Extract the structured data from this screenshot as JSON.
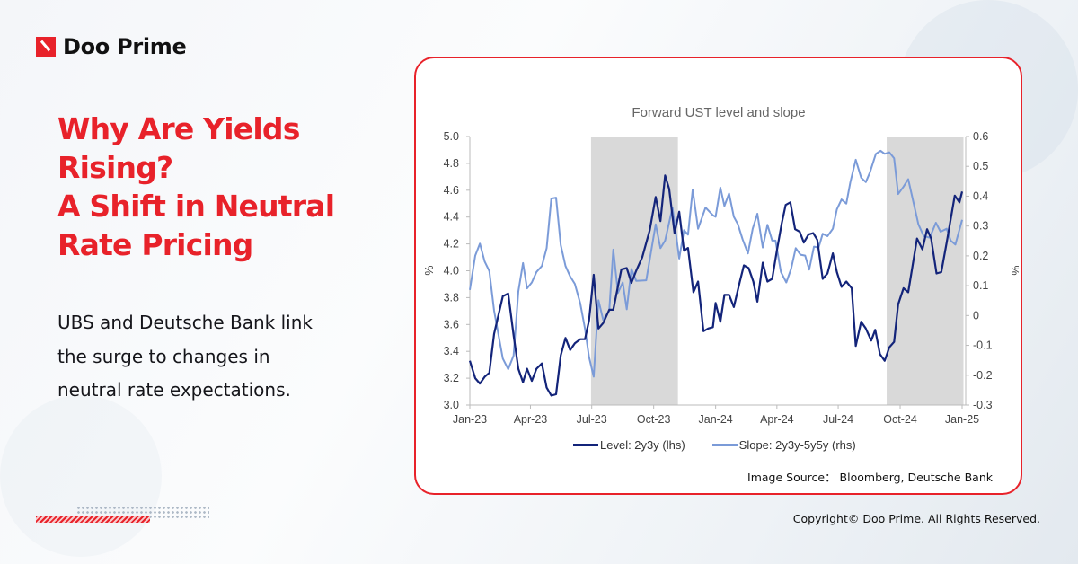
{
  "brand": {
    "name": "Doo Prime",
    "accent": "#e8222a"
  },
  "headline": [
    "Why Are Yields",
    "Rising?",
    "A Shift in Neutral",
    "Rate Pricing"
  ],
  "body": [
    "UBS and Deutsche Bank link",
    "the surge to changes in",
    "neutral rate expectations."
  ],
  "source": "Image Source： Bloomberg, Deutsche Bank",
  "copyright": "Copyright© Doo Prime. All Rights Reserved.",
  "chart_data": {
    "type": "line",
    "title": "Forward UST level and slope",
    "ylabel_left": "%",
    "ylabel_right": "%",
    "ylim_left": [
      3.0,
      5.0
    ],
    "ylim_right": [
      -0.3,
      0.6
    ],
    "yticks_left": [
      "5.0",
      "4.8",
      "4.6",
      "4.4",
      "4.2",
      "4.0",
      "3.8",
      "3.6",
      "3.4",
      "3.2",
      "3.0"
    ],
    "yticks_right": [
      "0.6",
      "0.5",
      "0.4",
      "0.3",
      "0.2",
      "0.1",
      "0",
      "-0.1",
      "-0.2",
      "-0.3"
    ],
    "xlim": [
      "2023-01-01",
      "2025-01-01"
    ],
    "xticks": [
      {
        "date": "2023-01-01",
        "label": "Jan-23"
      },
      {
        "date": "2023-04-01",
        "label": "Apr-23"
      },
      {
        "date": "2023-07-01",
        "label": "Jul-23"
      },
      {
        "date": "2023-10-01",
        "label": "Oct-23"
      },
      {
        "date": "2024-01-01",
        "label": "Jan-24"
      },
      {
        "date": "2024-04-01",
        "label": "Apr-24"
      },
      {
        "date": "2024-07-01",
        "label": "Jul-24"
      },
      {
        "date": "2024-10-01",
        "label": "Oct-24"
      },
      {
        "date": "2025-01-01",
        "label": "Jan-25"
      }
    ],
    "grid": false,
    "legend_position": "bottom",
    "shaded_periods": [
      [
        "2023-06-30",
        "2023-11-06"
      ],
      [
        "2024-09-11",
        "2025-01-03"
      ]
    ],
    "shade_color": "#d9d9d9",
    "series": [
      {
        "name": "Level: 2y3y (lhs)",
        "axis": "left",
        "color": "#13247a",
        "x": [
          "2023-01-01",
          "2023-01-09",
          "2023-01-16",
          "2023-01-23",
          "2023-01-30",
          "2023-02-06",
          "2023-02-19",
          "2023-02-27",
          "2023-03-07",
          "2023-03-14",
          "2023-03-21",
          "2023-03-27",
          "2023-04-03",
          "2023-04-10",
          "2023-04-18",
          "2023-04-25",
          "2023-05-02",
          "2023-05-09",
          "2023-05-16",
          "2023-05-23",
          "2023-05-30",
          "2023-06-06",
          "2023-06-14",
          "2023-06-21",
          "2023-06-27",
          "2023-07-04",
          "2023-07-11",
          "2023-07-18",
          "2023-07-27",
          "2023-08-02",
          "2023-08-14",
          "2023-08-22",
          "2023-08-29",
          "2023-09-05",
          "2023-09-14",
          "2023-09-25",
          "2023-10-04",
          "2023-10-11",
          "2023-10-18",
          "2023-10-24",
          "2023-11-01",
          "2023-11-08",
          "2023-11-15",
          "2023-11-21",
          "2023-11-29",
          "2023-12-06",
          "2023-12-14",
          "2023-12-21",
          "2023-12-28",
          "2024-01-01",
          "2024-01-08",
          "2024-01-14",
          "2024-01-21",
          "2024-01-28",
          "2024-02-06",
          "2024-02-12",
          "2024-02-19",
          "2024-02-26",
          "2024-03-03",
          "2024-03-11",
          "2024-03-18",
          "2024-03-25",
          "2024-04-01",
          "2024-04-08",
          "2024-04-14",
          "2024-04-21",
          "2024-04-28",
          "2024-05-05",
          "2024-05-11",
          "2024-05-18",
          "2024-05-25",
          "2024-05-31",
          "2024-06-08",
          "2024-06-15",
          "2024-06-23",
          "2024-06-29",
          "2024-07-06",
          "2024-07-13",
          "2024-07-21",
          "2024-07-27",
          "2024-08-04",
          "2024-08-11",
          "2024-08-19",
          "2024-08-25",
          "2024-09-01",
          "2024-09-08",
          "2024-09-15",
          "2024-09-22",
          "2024-09-28",
          "2024-10-06",
          "2024-10-13",
          "2024-10-26",
          "2024-11-03",
          "2024-11-10",
          "2024-11-16",
          "2024-11-24",
          "2024-12-01",
          "2024-12-09",
          "2024-12-21",
          "2024-12-28",
          "2025-01-01"
        ],
        "y": [
          3.33,
          3.2,
          3.16,
          3.21,
          3.24,
          3.53,
          3.81,
          3.83,
          3.52,
          3.27,
          3.17,
          3.27,
          3.18,
          3.27,
          3.31,
          3.13,
          3.07,
          3.08,
          3.37,
          3.5,
          3.41,
          3.46,
          3.49,
          3.49,
          3.63,
          3.97,
          3.57,
          3.61,
          3.71,
          3.71,
          4.01,
          4.02,
          3.91,
          4.0,
          4.1,
          4.3,
          4.55,
          4.37,
          4.71,
          4.61,
          4.28,
          4.44,
          4.15,
          4.17,
          3.84,
          3.92,
          3.55,
          3.57,
          3.58,
          3.76,
          3.62,
          3.82,
          3.82,
          3.73,
          3.92,
          4.04,
          4.02,
          3.92,
          3.77,
          4.06,
          3.92,
          3.94,
          4.15,
          4.35,
          4.49,
          4.51,
          4.31,
          4.29,
          4.21,
          4.27,
          4.28,
          4.23,
          3.94,
          3.98,
          4.13,
          3.99,
          3.88,
          3.92,
          3.87,
          3.44,
          3.62,
          3.57,
          3.48,
          3.56,
          3.38,
          3.33,
          3.43,
          3.47,
          3.75,
          3.87,
          3.84,
          4.24,
          4.16,
          4.31,
          4.24,
          3.98,
          3.99,
          4.21,
          4.56,
          4.51,
          4.59
        ]
      },
      {
        "name": "Slope: 2y3y-5y5y (rhs)",
        "axis": "right",
        "color": "#7b9bd8",
        "x": [
          "2023-01-01",
          "2023-01-09",
          "2023-01-16",
          "2023-01-23",
          "2023-01-30",
          "2023-02-06",
          "2023-02-19",
          "2023-02-27",
          "2023-03-07",
          "2023-03-14",
          "2023-03-21",
          "2023-03-27",
          "2023-04-03",
          "2023-04-10",
          "2023-04-18",
          "2023-04-25",
          "2023-05-02",
          "2023-05-09",
          "2023-05-16",
          "2023-05-23",
          "2023-05-30",
          "2023-06-06",
          "2023-06-14",
          "2023-06-21",
          "2023-06-27",
          "2023-07-04",
          "2023-07-11",
          "2023-07-18",
          "2023-07-27",
          "2023-08-02",
          "2023-08-09",
          "2023-08-16",
          "2023-08-22",
          "2023-08-29",
          "2023-09-05",
          "2023-09-20",
          "2023-10-04",
          "2023-10-11",
          "2023-10-18",
          "2023-10-29",
          "2023-11-08",
          "2023-11-15",
          "2023-11-21",
          "2023-11-28",
          "2023-12-06",
          "2023-12-17",
          "2023-12-28",
          "2024-01-01",
          "2024-01-08",
          "2024-01-14",
          "2024-01-21",
          "2024-01-28",
          "2024-02-03",
          "2024-02-10",
          "2024-02-18",
          "2024-02-25",
          "2024-03-03",
          "2024-03-11",
          "2024-03-18",
          "2024-03-25",
          "2024-03-30",
          "2024-04-07",
          "2024-04-15",
          "2024-04-22",
          "2024-04-29",
          "2024-05-06",
          "2024-05-13",
          "2024-05-19",
          "2024-05-26",
          "2024-06-02",
          "2024-06-08",
          "2024-06-15",
          "2024-06-23",
          "2024-06-29",
          "2024-07-06",
          "2024-07-13",
          "2024-07-19",
          "2024-07-27",
          "2024-08-04",
          "2024-08-11",
          "2024-08-17",
          "2024-08-26",
          "2024-09-02",
          "2024-09-08",
          "2024-09-15",
          "2024-09-22",
          "2024-09-28",
          "2024-10-06",
          "2024-10-13",
          "2024-10-21",
          "2024-10-28",
          "2024-11-05",
          "2024-11-14",
          "2024-11-23",
          "2024-11-30",
          "2024-12-09",
          "2024-12-15",
          "2024-12-22",
          "2025-01-01"
        ],
        "y": [
          0.086,
          0.201,
          0.241,
          0.181,
          0.149,
          0.016,
          -0.144,
          -0.18,
          -0.134,
          0.081,
          0.176,
          0.091,
          0.111,
          0.146,
          0.166,
          0.226,
          0.392,
          0.395,
          0.236,
          0.166,
          0.131,
          0.106,
          0.041,
          -0.044,
          -0.139,
          -0.205,
          0.051,
          -0.014,
          0.016,
          0.221,
          0.076,
          0.111,
          0.021,
          0.156,
          0.116,
          0.118,
          0.306,
          0.226,
          0.251,
          0.362,
          0.191,
          0.286,
          0.271,
          0.422,
          0.291,
          0.362,
          0.336,
          0.331,
          0.429,
          0.367,
          0.409,
          0.331,
          0.306,
          0.256,
          0.208,
          0.291,
          0.341,
          0.228,
          0.304,
          0.251,
          0.251,
          0.146,
          0.111,
          0.156,
          0.226,
          0.204,
          0.201,
          0.154,
          0.231,
          0.228,
          0.274,
          0.266,
          0.291,
          0.356,
          0.389,
          0.375,
          0.447,
          0.522,
          0.462,
          0.447,
          0.479,
          0.542,
          0.552,
          0.542,
          0.547,
          0.527,
          0.407,
          0.432,
          0.457,
          0.377,
          0.306,
          0.266,
          0.261,
          0.311,
          0.281,
          0.291,
          0.251,
          0.238,
          0.321
        ]
      }
    ]
  }
}
